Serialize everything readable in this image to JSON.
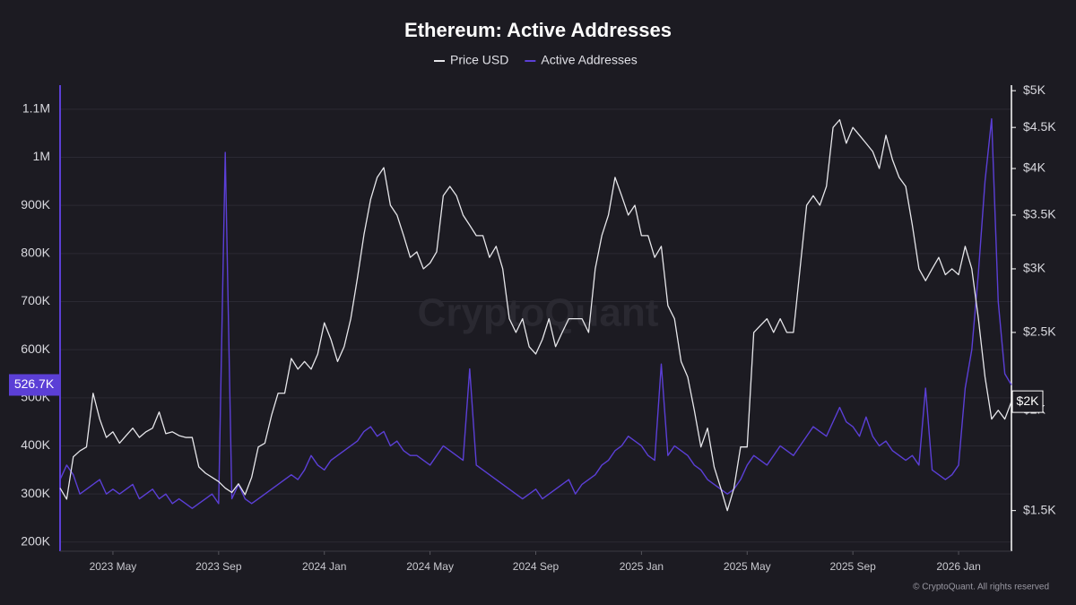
{
  "chart_data": {
    "type": "line",
    "title": "Ethereum: Active Addresses",
    "categories": [
      null,
      null,
      null,
      null,
      null,
      null,
      null,
      null,
      "2023 May",
      null,
      null,
      null,
      null,
      null,
      null,
      null,
      null,
      null,
      null,
      null,
      null,
      null,
      null,
      null,
      "2023 Sep",
      null,
      null,
      null,
      null,
      null,
      null,
      null,
      null,
      null,
      null,
      null,
      null,
      null,
      null,
      null,
      "2024 Jan",
      null,
      null,
      null,
      null,
      null,
      null,
      null,
      null,
      null,
      null,
      null,
      null,
      null,
      null,
      null,
      "2024 May",
      null,
      null,
      null,
      null,
      null,
      null,
      null,
      null,
      null,
      null,
      null,
      null,
      null,
      null,
      null,
      "2024 Sep",
      null,
      null,
      null,
      null,
      null,
      null,
      null,
      null,
      null,
      null,
      null,
      null,
      null,
      null,
      null,
      "2025 Jan",
      null,
      null,
      null,
      null,
      null,
      null,
      null,
      null,
      null,
      null,
      null,
      null,
      null,
      null,
      null,
      "2025 May",
      null,
      null,
      null,
      null,
      null,
      null,
      null,
      null,
      null,
      null,
      null,
      null,
      null,
      null,
      null,
      "2025 Sep",
      null,
      null,
      null,
      null,
      null,
      null,
      null,
      null,
      null,
      null,
      null,
      null,
      null,
      null,
      null,
      "2026 Jan",
      null,
      null,
      null,
      null,
      null,
      null,
      null,
      null
    ],
    "series": [
      {
        "name": "Price USD",
        "color": "#e6e6ea",
        "axis": "y2",
        "values": [
          1600,
          1550,
          1750,
          1780,
          1800,
          2100,
          1950,
          1850,
          1880,
          1820,
          1860,
          1900,
          1850,
          1880,
          1900,
          1990,
          1870,
          1880,
          1860,
          1850,
          1850,
          1700,
          1670,
          1650,
          1630,
          1600,
          1580,
          1620,
          1570,
          1650,
          1800,
          1820,
          1970,
          2100,
          2100,
          2320,
          2250,
          2300,
          2250,
          2350,
          2570,
          2450,
          2300,
          2400,
          2600,
          2920,
          3310,
          3660,
          3900,
          4010,
          3600,
          3500,
          3300,
          3100,
          3150,
          3000,
          3050,
          3150,
          3700,
          3800,
          3700,
          3500,
          3400,
          3300,
          3300,
          3100,
          3200,
          3000,
          2600,
          2500,
          2600,
          2400,
          2350,
          2450,
          2600,
          2400,
          2500,
          2600,
          2600,
          2600,
          2500,
          3000,
          3300,
          3500,
          3900,
          3700,
          3500,
          3600,
          3300,
          3300,
          3100,
          3200,
          2700,
          2600,
          2300,
          2200,
          2000,
          1800,
          1900,
          1700,
          1600,
          1500,
          1600,
          1800,
          1800,
          2500,
          2550,
          2600,
          2500,
          2600,
          2500,
          2500,
          3000,
          3600,
          3700,
          3600,
          3800,
          4500,
          4600,
          4300,
          4500,
          4400,
          4300,
          4200,
          4000,
          4400,
          4100,
          3900,
          3800,
          3400,
          3000,
          2900,
          3000,
          3100,
          2950,
          3000,
          2950,
          3200,
          3000,
          2600,
          2200,
          1950,
          2000,
          1950,
          2050
        ]
      },
      {
        "name": "Active Addresses",
        "color": "#5b3fd6",
        "values": [
          330000,
          360000,
          340000,
          300000,
          310000,
          320000,
          330000,
          300000,
          310000,
          300000,
          310000,
          320000,
          290000,
          300000,
          310000,
          290000,
          300000,
          280000,
          290000,
          280000,
          270000,
          280000,
          290000,
          300000,
          280000,
          1010000,
          290000,
          320000,
          290000,
          280000,
          290000,
          300000,
          310000,
          320000,
          330000,
          340000,
          330000,
          350000,
          380000,
          360000,
          350000,
          370000,
          380000,
          390000,
          400000,
          410000,
          430000,
          440000,
          420000,
          430000,
          400000,
          410000,
          390000,
          380000,
          380000,
          370000,
          360000,
          380000,
          400000,
          390000,
          380000,
          370000,
          560000,
          360000,
          350000,
          340000,
          330000,
          320000,
          310000,
          300000,
          290000,
          300000,
          310000,
          290000,
          300000,
          310000,
          320000,
          330000,
          300000,
          320000,
          330000,
          340000,
          360000,
          370000,
          390000,
          400000,
          420000,
          410000,
          400000,
          380000,
          370000,
          570000,
          380000,
          400000,
          390000,
          380000,
          360000,
          350000,
          330000,
          320000,
          310000,
          300000,
          310000,
          330000,
          360000,
          380000,
          370000,
          360000,
          380000,
          400000,
          390000,
          380000,
          400000,
          420000,
          440000,
          430000,
          420000,
          450000,
          480000,
          450000,
          440000,
          420000,
          460000,
          420000,
          400000,
          410000,
          390000,
          380000,
          370000,
          380000,
          360000,
          520000,
          350000,
          340000,
          330000,
          340000,
          360000,
          520000,
          600000,
          760000,
          950000,
          1080000,
          700000,
          550000,
          526700
        ]
      }
    ],
    "ylim": [
      181000,
      1150000
    ],
    "yticks": [
      {
        "value": 200000,
        "label": "200K"
      },
      {
        "value": 300000,
        "label": "300K"
      },
      {
        "value": 400000,
        "label": "400K"
      },
      {
        "value": 500000,
        "label": "500K"
      },
      {
        "value": 600000,
        "label": "600K"
      },
      {
        "value": 700000,
        "label": "700K"
      },
      {
        "value": 800000,
        "label": "800K"
      },
      {
        "value": 900000,
        "label": "900K"
      },
      {
        "value": 1000000,
        "label": "1M"
      },
      {
        "value": 1100000,
        "label": "1.1M"
      }
    ],
    "y2lim": [
      1335,
      5080
    ],
    "y2scale": "log",
    "y2ticks": [
      {
        "value": 1500,
        "label": "$1.5K"
      },
      {
        "value": 2000,
        "label": "$2K"
      },
      {
        "value": 2500,
        "label": "$2.5K"
      },
      {
        "value": 3000,
        "label": "$3K"
      },
      {
        "value": 3500,
        "label": "$3.5K"
      },
      {
        "value": 4000,
        "label": "$4K"
      },
      {
        "value": 4500,
        "label": "$4.5K"
      },
      {
        "value": 5000,
        "label": "$5K"
      }
    ],
    "grid": true,
    "legend": "top",
    "annotations": [
      {
        "text": "526.7K",
        "value": 526700,
        "axis": "y"
      },
      {
        "text": "$2K",
        "value": 2050,
        "axis": "y2"
      }
    ],
    "watermark": "CryptoQuant",
    "footer": "© CryptoQuant. All rights reserved"
  }
}
